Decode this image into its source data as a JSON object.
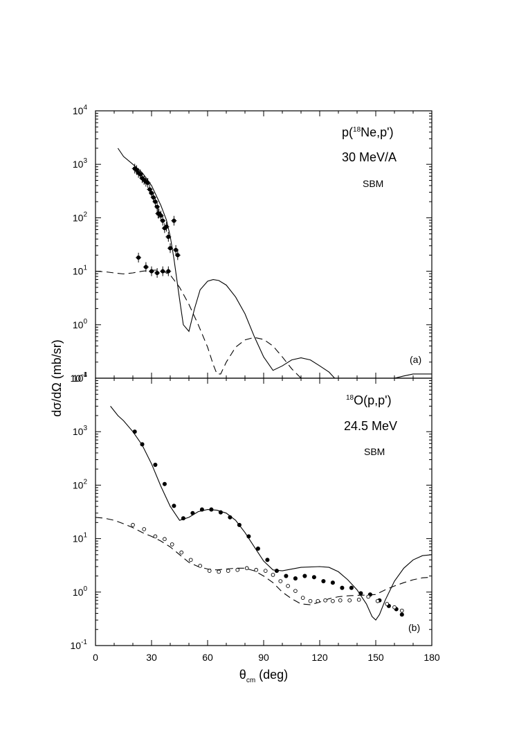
{
  "chart_data": [
    {
      "type": "scatter",
      "panel": "(a)",
      "annotation_lines": [
        "p(",
        "18",
        "Ne,p')",
        "30 MeV/A",
        "SBM"
      ],
      "xlim": [
        0,
        180
      ],
      "ylim": [
        0.1,
        10000
      ],
      "yscale": "log",
      "x_ticks": [
        0,
        30,
        60,
        90,
        120,
        150,
        180
      ],
      "series": [
        {
          "style": "filled-circles-with-errorbars",
          "x": [
            21,
            22,
            23,
            24,
            25,
            26,
            27,
            28,
            29,
            30,
            31,
            32,
            33,
            33.5,
            34,
            35,
            36,
            37,
            38,
            39,
            40,
            42,
            43,
            44
          ],
          "y": [
            830,
            780,
            690,
            650,
            550,
            510,
            470,
            450,
            340,
            290,
            240,
            200,
            160,
            120,
            120,
            110,
            88,
            64,
            68,
            44,
            27,
            88,
            25,
            20
          ]
        },
        {
          "style": "filled-circles-with-errorbars",
          "x": [
            23,
            27,
            30,
            33,
            36,
            39
          ],
          "y": [
            18,
            12,
            10,
            9.3,
            10,
            10
          ]
        },
        {
          "style": "solid-line",
          "x": [
            12,
            15,
            20,
            25,
            30,
            35,
            38,
            40,
            42,
            45,
            47,
            50,
            53,
            56,
            60,
            63,
            66,
            70,
            75,
            80,
            85,
            90,
            95,
            100,
            105,
            110,
            115,
            120,
            125,
            128,
            160,
            165,
            170,
            175,
            180
          ],
          "y": [
            2000,
            1400,
            1000,
            700,
            400,
            170,
            90,
            45,
            17,
            3,
            1.0,
            0.75,
            2.0,
            4.5,
            6.5,
            7.0,
            6.7,
            5.5,
            3.3,
            1.6,
            0.6,
            0.25,
            0.14,
            0.17,
            0.22,
            0.24,
            0.22,
            0.17,
            0.13,
            0.1,
            0.1,
            0.11,
            0.12,
            0.12,
            0.12
          ]
        },
        {
          "style": "dashed-line",
          "x": [
            0,
            5,
            10,
            15,
            20,
            25,
            30,
            35,
            40,
            45,
            50,
            55,
            60,
            63,
            65,
            67,
            70,
            75,
            80,
            85,
            90,
            95,
            100,
            105,
            110
          ],
          "y": [
            10,
            9.8,
            9.3,
            8.9,
            9.3,
            10,
            10.5,
            10.5,
            8.5,
            5,
            2.4,
            1.0,
            0.38,
            0.18,
            0.12,
            0.12,
            0.2,
            0.38,
            0.52,
            0.58,
            0.53,
            0.4,
            0.25,
            0.15,
            0.1
          ]
        }
      ]
    },
    {
      "type": "scatter",
      "panel": "(b)",
      "annotation_lines": [
        "18",
        "O(p,p')",
        "24.5 MeV",
        "SBM"
      ],
      "xlim": [
        0,
        180
      ],
      "ylim": [
        0.1,
        10000
      ],
      "yscale": "log",
      "x_ticks": [
        0,
        30,
        60,
        90,
        120,
        150,
        180
      ],
      "x_tick_labels": [
        "0",
        "30",
        "60",
        "90",
        "120",
        "150",
        "180"
      ],
      "series": [
        {
          "style": "filled-circles",
          "x": [
            21,
            25,
            32,
            37,
            42,
            47,
            52,
            57,
            62,
            67,
            72,
            77,
            82,
            87,
            92,
            97,
            102,
            107,
            112,
            117,
            122,
            127,
            132,
            137,
            142,
            147,
            152,
            157,
            161,
            164
          ],
          "y": [
            1000,
            580,
            240,
            105,
            41,
            24,
            30,
            35,
            35,
            31,
            25,
            18,
            11,
            6.5,
            4.0,
            2.5,
            2.0,
            1.8,
            2.0,
            1.9,
            1.6,
            1.5,
            1.2,
            1.2,
            0.95,
            0.9,
            0.7,
            0.55,
            0.48,
            0.38
          ]
        },
        {
          "style": "open-circles",
          "x": [
            20,
            26,
            32,
            37,
            41,
            46,
            51,
            56,
            61,
            66,
            71,
            76,
            81,
            86,
            91,
            95,
            99,
            103,
            107,
            111,
            115,
            119,
            123,
            127,
            131,
            136,
            141,
            146,
            151,
            156,
            160,
            164
          ],
          "y": [
            18,
            15,
            11,
            9.8,
            7.8,
            5.5,
            4.0,
            3.1,
            2.5,
            2.4,
            2.5,
            2.6,
            2.8,
            2.6,
            2.5,
            2.1,
            1.6,
            1.3,
            1.05,
            0.78,
            0.68,
            0.68,
            0.7,
            0.68,
            0.7,
            0.7,
            0.72,
            0.82,
            0.68,
            0.6,
            0.52,
            0.45
          ]
        },
        {
          "style": "solid-line",
          "x": [
            8,
            12,
            15,
            20,
            25,
            30,
            35,
            40,
            45,
            50,
            55,
            60,
            65,
            70,
            75,
            80,
            85,
            90,
            95,
            100,
            110,
            120,
            125,
            130,
            135,
            140,
            145,
            148,
            150,
            152,
            155,
            160,
            165,
            170,
            175,
            180
          ],
          "y": [
            3000,
            2000,
            1600,
            1000,
            560,
            250,
            95,
            40,
            22,
            25,
            32,
            35,
            34,
            30,
            22,
            13,
            7,
            3.8,
            2.6,
            2.5,
            2.9,
            3.0,
            2.9,
            2.4,
            1.7,
            1.1,
            0.6,
            0.35,
            0.3,
            0.38,
            0.7,
            1.6,
            2.8,
            4.0,
            4.8,
            5.0
          ]
        },
        {
          "style": "dashed-line",
          "x": [
            0,
            5,
            10,
            15,
            20,
            25,
            30,
            35,
            40,
            45,
            50,
            55,
            60,
            65,
            70,
            75,
            80,
            85,
            90,
            95,
            100,
            105,
            110,
            115,
            120,
            125,
            130,
            135,
            140,
            145,
            150,
            155,
            160,
            165,
            170,
            175,
            180
          ],
          "y": [
            25,
            24,
            22,
            19,
            16,
            13,
            11,
            9,
            7,
            5,
            3.6,
            3.0,
            2.7,
            2.6,
            2.7,
            2.8,
            2.8,
            2.5,
            2.0,
            1.5,
            1.0,
            0.75,
            0.6,
            0.58,
            0.65,
            0.75,
            0.82,
            0.85,
            0.87,
            0.88,
            0.9,
            1.1,
            1.3,
            1.5,
            1.7,
            1.85,
            1.9
          ]
        }
      ]
    }
  ],
  "y_axis": {
    "title": "dσ/dΩ (mb/sr)",
    "tick_base": "10",
    "tick_exponents": [
      "4",
      "3",
      "2",
      "1",
      "0",
      "-1"
    ],
    "tick_values": [
      10000,
      1000,
      100,
      10,
      1,
      0.1
    ]
  },
  "x_axis": {
    "title_symbol": "θ",
    "title_sub": "cm",
    "title_rest": " (deg)"
  }
}
